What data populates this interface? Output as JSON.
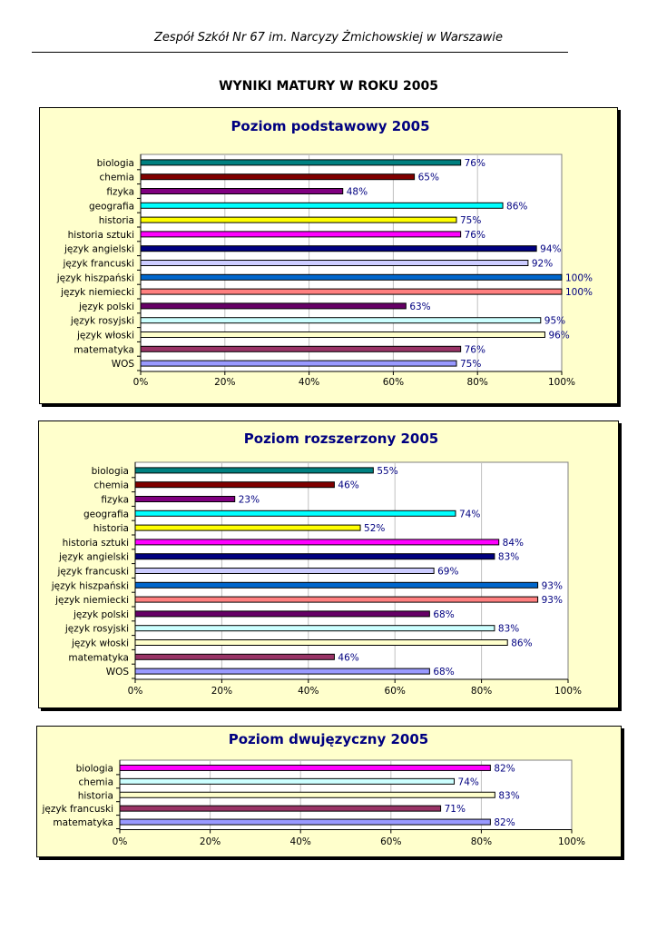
{
  "page": {
    "header": "Zespół Szkół Nr 67 im. Narcyzy Żmichowskiej w Warszawie",
    "title": "WYNIKI MATURY W ROKU 2005"
  },
  "chart_data": [
    {
      "type": "bar",
      "orientation": "horizontal",
      "title": "Poziom podstawowy 2005",
      "categories": [
        "biologia",
        "chemia",
        "fizyka",
        "geografia",
        "historia",
        "historia sztuki",
        "język angielski",
        "język francuski",
        "język hiszpański",
        "język niemiecki",
        "język polski",
        "język rosyjski",
        "język włoski",
        "matematyka",
        "WOS"
      ],
      "values": [
        76,
        65,
        48,
        86,
        75,
        76,
        94,
        92,
        100,
        100,
        63,
        95,
        96,
        76,
        75
      ],
      "value_labels": [
        "76%",
        "65%",
        "48%",
        "86%",
        "75%",
        "76%",
        "94%",
        "92%",
        "100%",
        "100%",
        "63%",
        "95%",
        "96%",
        "76%",
        "75%"
      ],
      "colors": [
        "#008080",
        "#800000",
        "#800080",
        "#00ffff",
        "#ffff00",
        "#ff00ff",
        "#000080",
        "#ccccff",
        "#0066cc",
        "#ff8080",
        "#660066",
        "#ccffff",
        "#ffffcc",
        "#993366",
        "#9999ff"
      ],
      "xlim": [
        0,
        100
      ],
      "xticks": [
        "0%",
        "20%",
        "40%",
        "60%",
        "80%",
        "100%"
      ],
      "grid": true
    },
    {
      "type": "bar",
      "orientation": "horizontal",
      "title": "Poziom rozszerzony 2005",
      "categories": [
        "biologia",
        "chemia",
        "fizyka",
        "geografia",
        "historia",
        "historia sztuki",
        "język angielski",
        "język francuski",
        "język hiszpański",
        "język niemiecki",
        "język polski",
        "język rosyjski",
        "język włoski",
        "matematyka",
        "WOS"
      ],
      "values": [
        55,
        46,
        23,
        74,
        52,
        84,
        83,
        69,
        93,
        93,
        68,
        83,
        86,
        46,
        68
      ],
      "value_labels": [
        "55%",
        "46%",
        "23%",
        "74%",
        "52%",
        "84%",
        "83%",
        "69%",
        "93%",
        "93%",
        "68%",
        "83%",
        "86%",
        "46%",
        "68%"
      ],
      "colors": [
        "#008080",
        "#800000",
        "#800080",
        "#00ffff",
        "#ffff00",
        "#ff00ff",
        "#000080",
        "#ccccff",
        "#0066cc",
        "#ff8080",
        "#660066",
        "#ccffff",
        "#ffffcc",
        "#993366",
        "#9999ff"
      ],
      "xlim": [
        0,
        100
      ],
      "xticks": [
        "0%",
        "20%",
        "40%",
        "60%",
        "80%",
        "100%"
      ],
      "grid": true
    },
    {
      "type": "bar",
      "orientation": "horizontal",
      "title": "Poziom dwujęzyczny 2005",
      "categories": [
        "biologia",
        "chemia",
        "historia",
        "język francuski",
        "matematyka"
      ],
      "values": [
        82,
        74,
        83,
        71,
        82
      ],
      "value_labels": [
        "82%",
        "74%",
        "83%",
        "71%",
        "82%"
      ],
      "colors": [
        "#ff00ff",
        "#ccffff",
        "#ffffcc",
        "#993366",
        "#9999ff"
      ],
      "xlim": [
        0,
        100
      ],
      "xticks": [
        "0%",
        "20%",
        "40%",
        "60%",
        "80%",
        "100%"
      ],
      "grid": true
    }
  ]
}
